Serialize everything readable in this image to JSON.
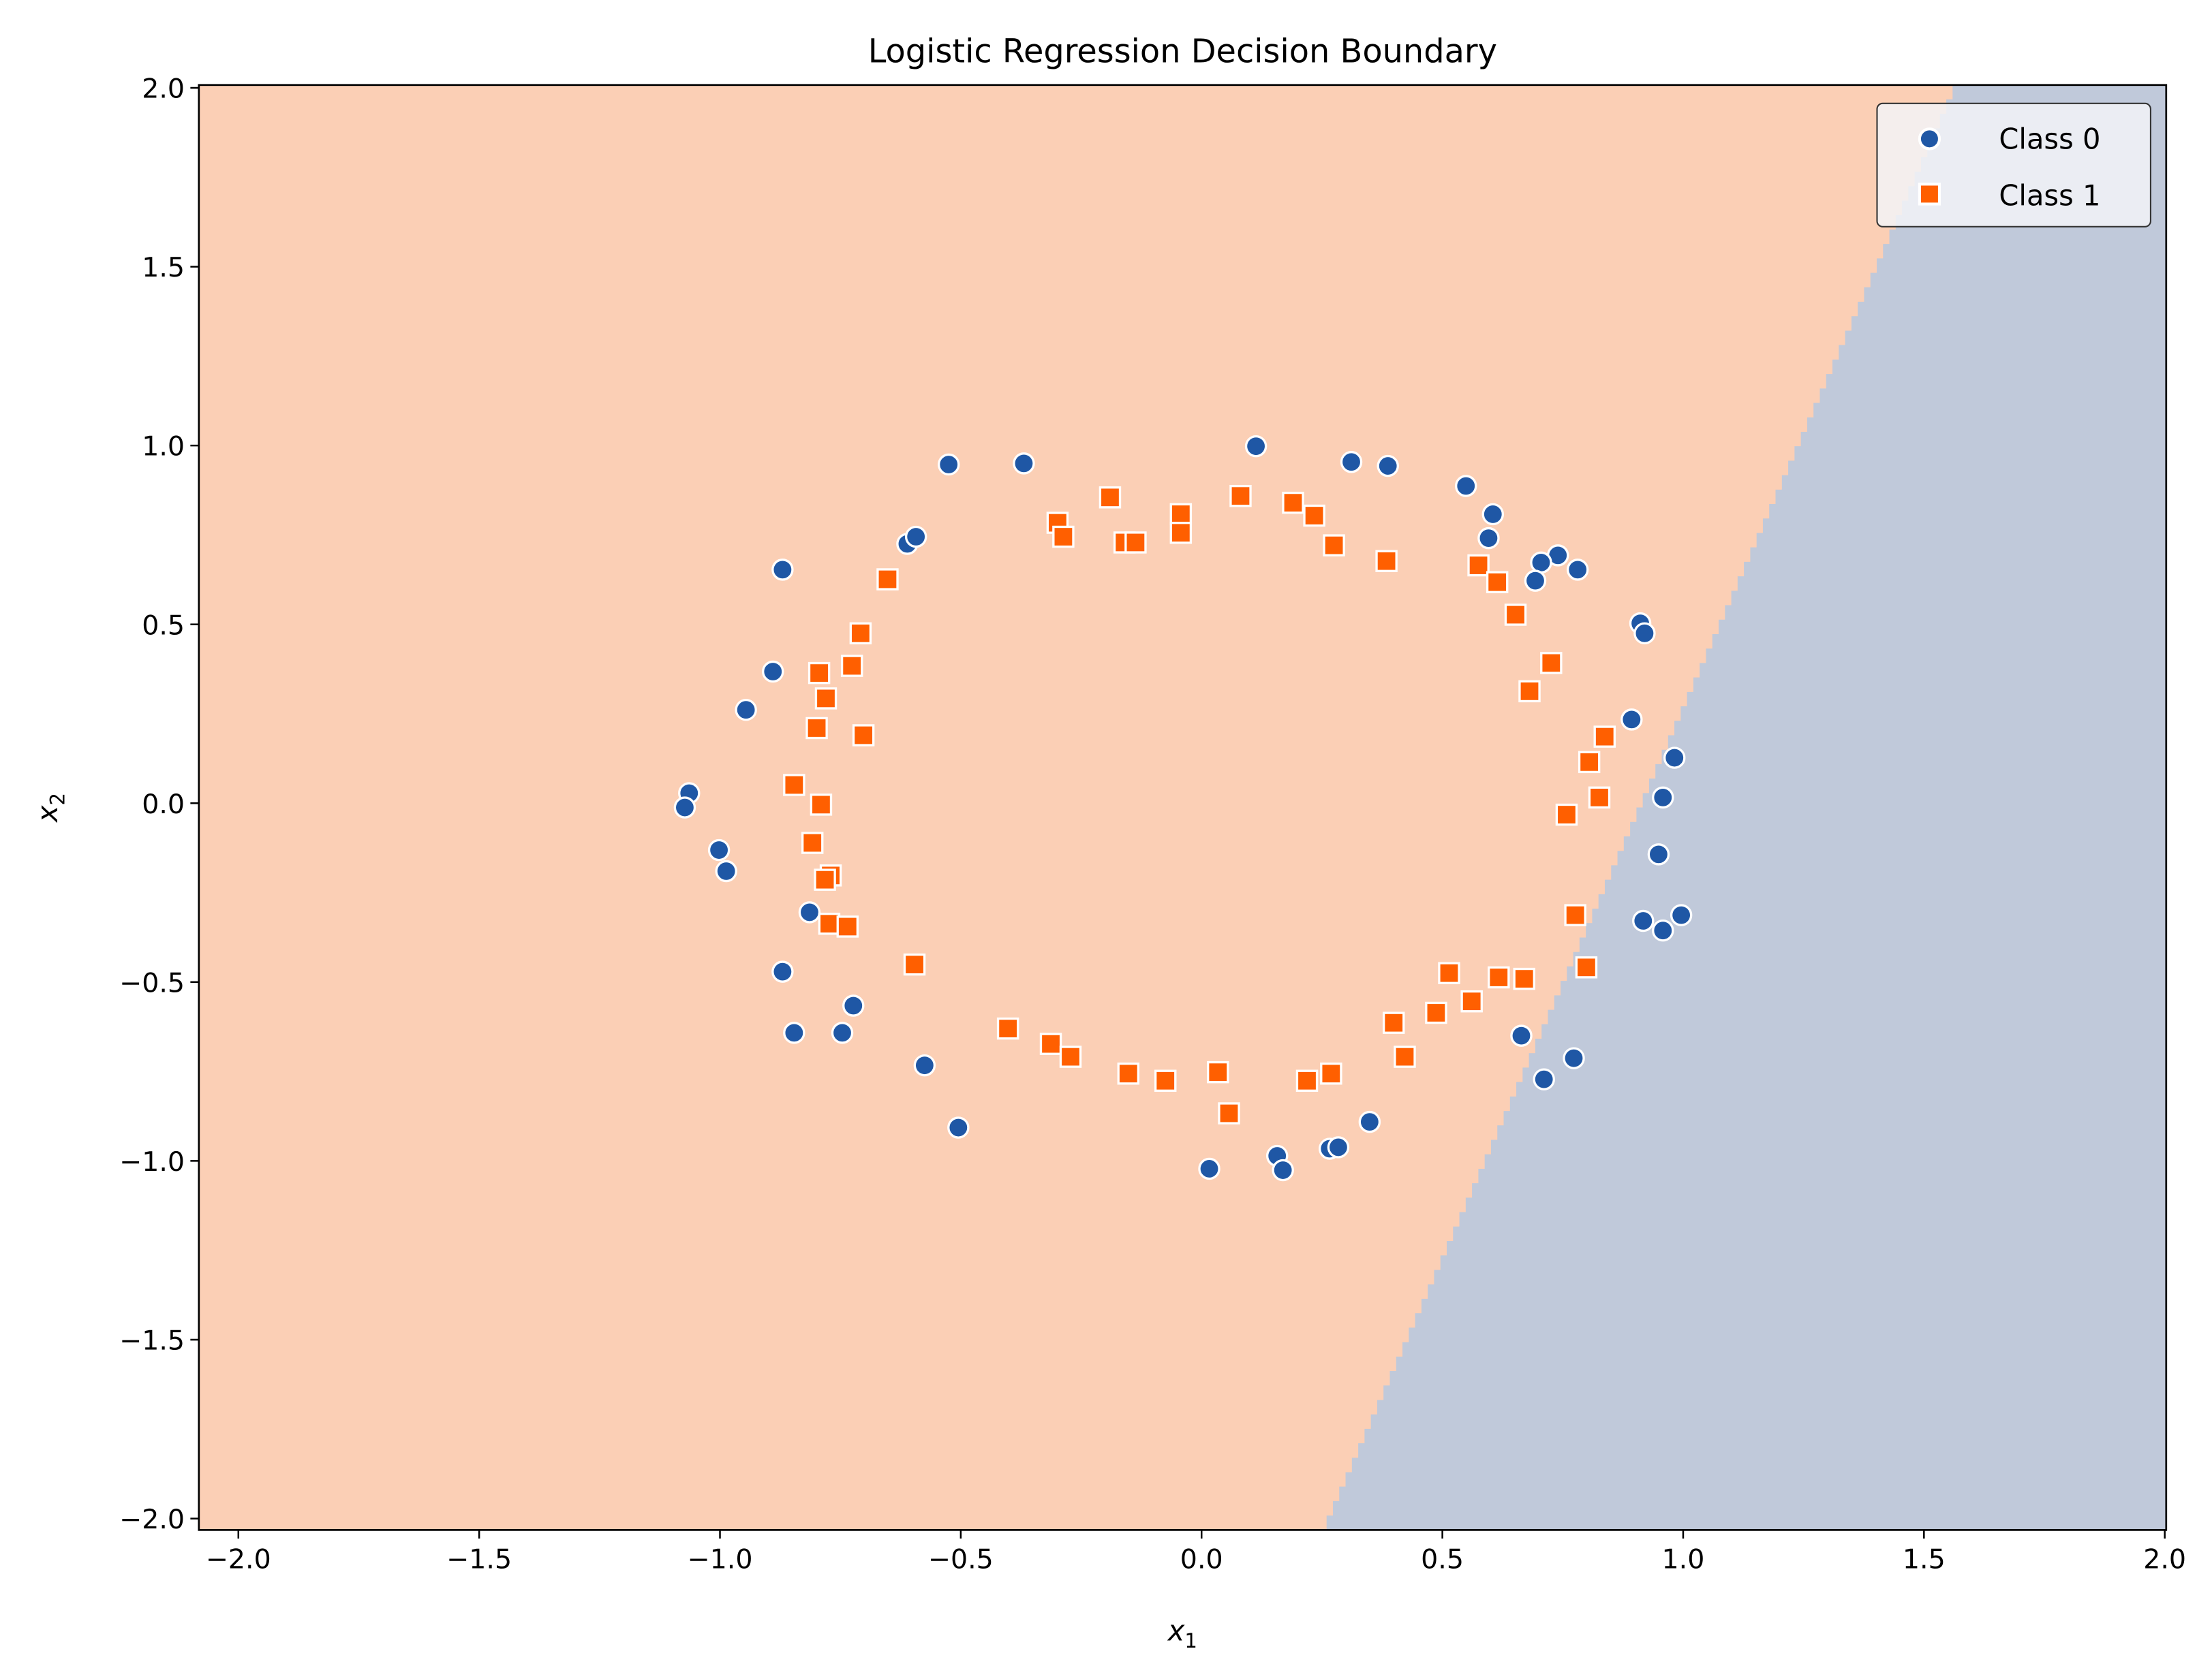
{
  "chart_data": {
    "type": "scatter",
    "title": "Logistic Regression Decision Boundary",
    "xlabel": "x",
    "xlabel_sub": "1",
    "ylabel": "x",
    "ylabel_sub": "2",
    "xlim": [
      -2.082,
      2.003
    ],
    "ylim": [
      -2.032,
      2.008
    ],
    "xticks": [
      -2.0,
      -1.5,
      -1.0,
      -0.5,
      0.0,
      0.5,
      1.0,
      1.5,
      2.0
    ],
    "xtick_labels": [
      "−2.0",
      "−1.5",
      "−1.0",
      "−0.5",
      "0.0",
      "0.5",
      "1.0",
      "1.5",
      "2.0"
    ],
    "yticks": [
      -2.0,
      -1.5,
      -1.0,
      -0.5,
      0.0,
      0.5,
      1.0,
      1.5,
      2.0
    ],
    "ytick_labels": [
      "−2.0",
      "−1.5",
      "−1.0",
      "−0.5",
      "0.0",
      "0.5",
      "1.0",
      "1.5",
      "2.0"
    ],
    "grid": false,
    "legend_position": "top-right",
    "decision_boundary": {
      "x_intercept": 0.92,
      "slope_x_per_y": 0.325,
      "region_left": "Class 1",
      "region_right": "Class 0"
    },
    "colors": {
      "region_class1": "#fbcfb5",
      "region_class0": "#c0c9da",
      "class0": "#1f57a5",
      "class1": "#ff5f00"
    },
    "series": [
      {
        "name": "Class 0",
        "marker": "circle",
        "points": [
          [
            -0.525,
            0.947
          ],
          [
            -0.369,
            0.95
          ],
          [
            0.113,
            0.998
          ],
          [
            0.311,
            0.954
          ],
          [
            0.387,
            0.943
          ],
          [
            0.549,
            0.887
          ],
          [
            0.605,
            0.808
          ],
          [
            0.596,
            0.741
          ],
          [
            0.74,
            0.693
          ],
          [
            0.781,
            0.653
          ],
          [
            0.705,
            0.673
          ],
          [
            0.693,
            0.622
          ],
          [
            -0.611,
            0.725
          ],
          [
            -0.593,
            0.745
          ],
          [
            -0.87,
            0.653
          ],
          [
            -0.89,
            0.368
          ],
          [
            -0.946,
            0.261
          ],
          [
            -1.064,
            0.028
          ],
          [
            -1.073,
            -0.012
          ],
          [
            -1.002,
            -0.131
          ],
          [
            -0.987,
            -0.19
          ],
          [
            0.911,
            0.503
          ],
          [
            0.92,
            0.475
          ],
          [
            0.893,
            0.234
          ],
          [
            0.982,
            0.127
          ],
          [
            0.958,
            0.016
          ],
          [
            0.949,
            -0.143
          ],
          [
            0.917,
            -0.329
          ],
          [
            0.958,
            -0.356
          ],
          [
            0.996,
            -0.313
          ],
          [
            -0.814,
            -0.305
          ],
          [
            -0.87,
            -0.471
          ],
          [
            -0.723,
            -0.566
          ],
          [
            -0.846,
            -0.642
          ],
          [
            -0.746,
            -0.642
          ],
          [
            -0.575,
            -0.733
          ],
          [
            -0.505,
            -0.907
          ],
          [
            0.016,
            -1.022
          ],
          [
            0.157,
            -0.986
          ],
          [
            0.169,
            -1.026
          ],
          [
            0.266,
            -0.966
          ],
          [
            0.284,
            -0.962
          ],
          [
            0.349,
            -0.891
          ],
          [
            0.664,
            -0.65
          ],
          [
            0.773,
            -0.713
          ],
          [
            0.711,
            -0.772
          ]
        ]
      },
      {
        "name": "Class 1",
        "marker": "square",
        "points": [
          [
            -0.299,
            0.784
          ],
          [
            -0.287,
            0.745
          ],
          [
            -0.19,
            0.855
          ],
          [
            -0.16,
            0.729
          ],
          [
            -0.137,
            0.729
          ],
          [
            -0.043,
            0.808
          ],
          [
            -0.043,
            0.756
          ],
          [
            0.081,
            0.859
          ],
          [
            0.19,
            0.84
          ],
          [
            0.234,
            0.804
          ],
          [
            0.275,
            0.721
          ],
          [
            0.384,
            0.677
          ],
          [
            -0.652,
            0.626
          ],
          [
            -0.708,
            0.475
          ],
          [
            -0.726,
            0.384
          ],
          [
            -0.794,
            0.364
          ],
          [
            -0.78,
            0.293
          ],
          [
            -0.799,
            0.21
          ],
          [
            -0.702,
            0.19
          ],
          [
            -0.846,
            0.051
          ],
          [
            -0.79,
            -0.004
          ],
          [
            -0.808,
            -0.111
          ],
          [
            -0.77,
            -0.202
          ],
          [
            -0.782,
            -0.214
          ],
          [
            -0.773,
            -0.337
          ],
          [
            -0.735,
            -0.345
          ],
          [
            -0.596,
            -0.451
          ],
          [
            0.575,
            0.665
          ],
          [
            0.614,
            0.618
          ],
          [
            0.652,
            0.527
          ],
          [
            0.726,
            0.392
          ],
          [
            0.681,
            0.313
          ],
          [
            0.837,
            0.186
          ],
          [
            0.805,
            0.115
          ],
          [
            0.826,
            0.016
          ],
          [
            0.758,
            -0.032
          ],
          [
            0.776,
            -0.313
          ],
          [
            0.799,
            -0.459
          ],
          [
            0.514,
            -0.475
          ],
          [
            0.617,
            -0.487
          ],
          [
            0.67,
            -0.491
          ],
          [
            0.561,
            -0.554
          ],
          [
            0.487,
            -0.586
          ],
          [
            0.399,
            -0.614
          ],
          [
            0.422,
            -0.709
          ],
          [
            -0.402,
            -0.63
          ],
          [
            -0.313,
            -0.673
          ],
          [
            -0.272,
            -0.709
          ],
          [
            -0.152,
            -0.756
          ],
          [
            -0.075,
            -0.776
          ],
          [
            0.034,
            -0.752
          ],
          [
            0.057,
            -0.867
          ],
          [
            0.219,
            -0.776
          ],
          [
            0.269,
            -0.756
          ]
        ]
      }
    ]
  }
}
